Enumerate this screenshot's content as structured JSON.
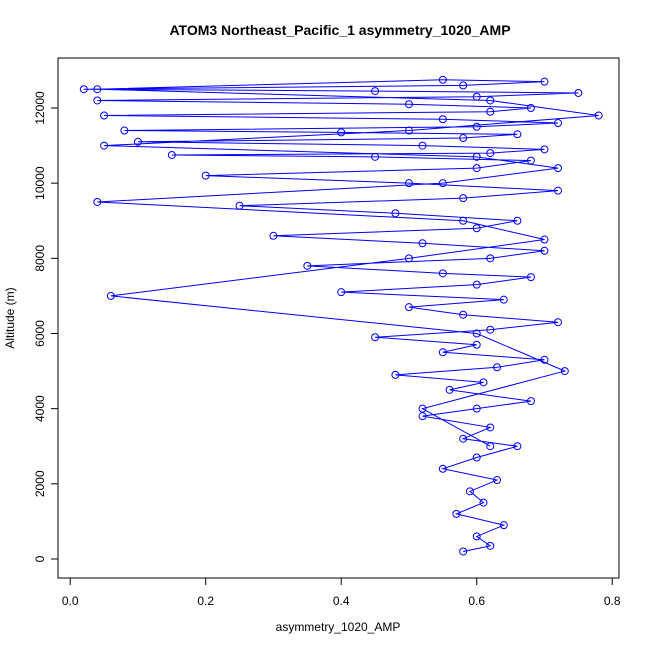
{
  "chart_data": {
    "type": "line",
    "markers": true,
    "title": "ATOM3 Northeast_Pacific_1 asymmetry_1020_AMP",
    "x_label": "asymmetry_1020_AMP",
    "y_label": "Altitude (m)",
    "x": [
      0.58,
      0.62,
      0.6,
      0.64,
      0.57,
      0.61,
      0.59,
      0.63,
      0.55,
      0.6,
      0.66,
      0.58,
      0.62,
      0.52,
      0.6,
      0.68,
      0.56,
      0.61,
      0.48,
      0.63,
      0.7,
      0.55,
      0.6,
      0.45,
      0.62,
      0.72,
      0.58,
      0.5,
      0.64,
      0.4,
      0.6,
      0.68,
      0.55,
      0.35,
      0.62,
      0.7,
      0.52,
      0.3,
      0.6,
      0.66,
      0.48,
      0.25,
      0.58,
      0.72,
      0.5,
      0.2,
      0.6,
      0.68,
      0.45,
      0.15,
      0.62,
      0.7,
      0.52,
      0.1,
      0.58,
      0.66,
      0.4,
      0.08,
      0.6,
      0.72,
      0.55,
      0.05,
      0.62,
      0.68,
      0.5,
      0.04,
      0.6,
      0.75,
      0.45,
      0.02,
      0.58,
      0.7,
      0.55,
      0.04,
      0.62,
      0.78,
      0.5,
      0.05,
      0.6,
      0.72,
      0.55,
      0.04,
      0.58,
      0.7,
      0.5,
      0.06,
      0.6,
      0.73,
      0.52,
      0.62
    ],
    "series": [
      {
        "color": "#0000ff",
        "values": [
          200,
          350,
          600,
          900,
          1200,
          1500,
          1800,
          2100,
          2400,
          2700,
          3000,
          3200,
          3500,
          3800,
          4000,
          4200,
          4500,
          4700,
          4900,
          5100,
          5300,
          5500,
          5700,
          5900,
          6100,
          6300,
          6500,
          6700,
          6900,
          7100,
          7300,
          7500,
          7600,
          7800,
          8000,
          8200,
          8400,
          8600,
          8800,
          9000,
          9200,
          9400,
          9600,
          9800,
          10000,
          10200,
          10400,
          10600,
          10700,
          10750,
          10800,
          10900,
          11000,
          11100,
          11200,
          11300,
          11350,
          11400,
          11500,
          11600,
          11700,
          11800,
          11900,
          12000,
          12100,
          12200,
          12300,
          12400,
          12450,
          12500,
          12600,
          12700,
          12750,
          12500,
          12200,
          11800,
          11400,
          11000,
          10700,
          10400,
          10000,
          9500,
          9000,
          8500,
          8000,
          7000,
          6000,
          5000,
          4000,
          3000
        ]
      }
    ],
    "xlim": [
      -0.018,
      0.81
    ],
    "ylim": [
      -506,
      13330
    ],
    "xticks": [
      {
        "value": 0,
        "label": "0.0"
      },
      0.2,
      0.4,
      0.6,
      0.8
    ],
    "yticks": [
      0,
      2000,
      4000,
      6000,
      8000,
      10000,
      12000
    ],
    "grid": false
  }
}
